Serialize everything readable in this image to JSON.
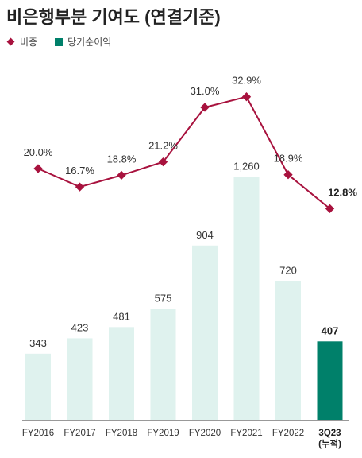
{
  "title": "비은행부분 기여도 (연결기준)",
  "legend": {
    "ratio": "비중",
    "profit": "당기순이익"
  },
  "colors": {
    "line": "#a8123e",
    "bar": "#dff2ee",
    "bar_highlight": "#00806a"
  },
  "chart_data": {
    "type": "bar",
    "categories": [
      "FY2016",
      "FY2017",
      "FY2018",
      "FY2019",
      "FY2020",
      "FY2021",
      "FY2022",
      "3Q23\n(누적)"
    ],
    "series": [
      {
        "name": "당기순이익",
        "type": "bar",
        "values": [
          343,
          423,
          481,
          575,
          904,
          1260,
          720,
          407
        ],
        "labels": [
          "343",
          "423",
          "481",
          "575",
          "904",
          "1,260",
          "720",
          "407"
        ]
      },
      {
        "name": "비중",
        "type": "line",
        "values": [
          20.0,
          16.7,
          18.8,
          21.2,
          31.0,
          32.9,
          18.9,
          12.8
        ],
        "labels": [
          "20.0%",
          "16.7%",
          "18.8%",
          "21.2%",
          "31.0%",
          "32.9%",
          "18.9%",
          "12.8%"
        ]
      }
    ],
    "title": "비은행부분 기여도 (연결기준)",
    "legend_position": "top-left",
    "grid": false
  }
}
